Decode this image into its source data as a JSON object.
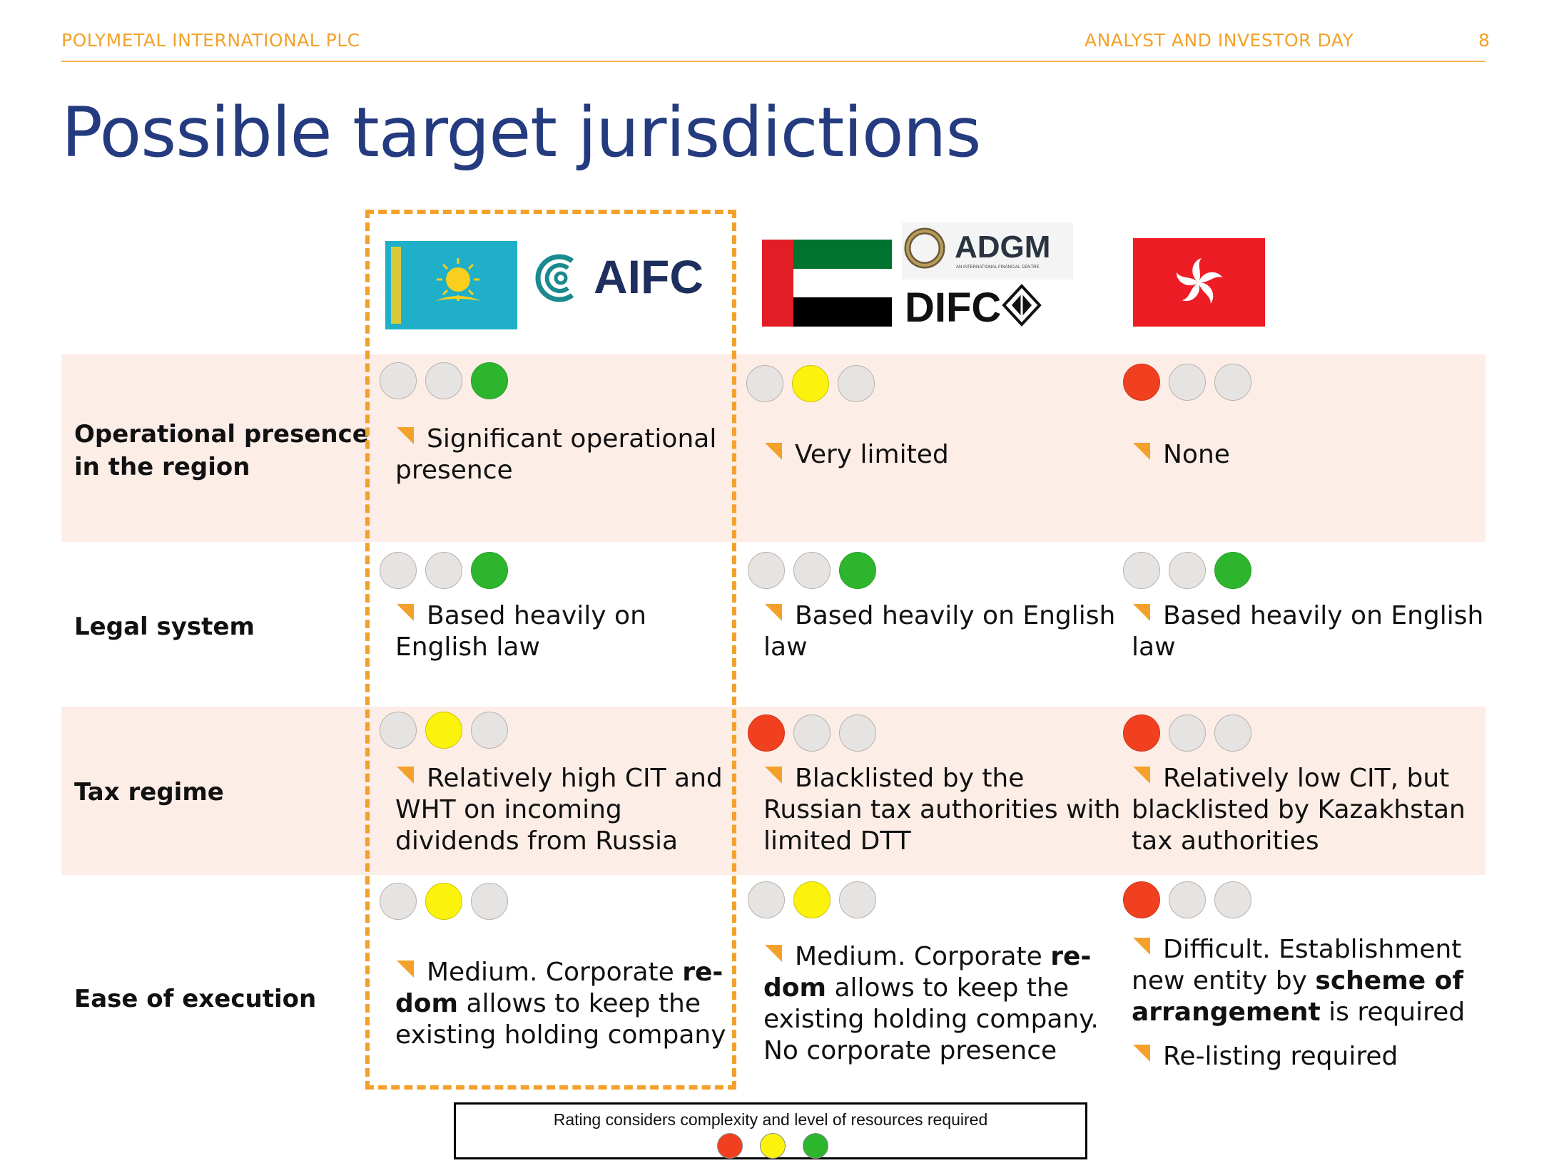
{
  "header": {
    "company": "POLYMETAL INTERNATIONAL PLC",
    "event": "ANALYST AND INVESTOR DAY",
    "page": "8"
  },
  "title": "Possible target jurisdictions",
  "logos": {
    "aifc": "AIFC",
    "adgm": "ADGM",
    "adgm_sub": "AN INTERNATIONAL FINANCIAL CENTRE",
    "difc": "DIFC"
  },
  "rows": [
    {
      "label": [
        "Operational presence",
        "in the region"
      ],
      "cells": [
        {
          "rating": [
            "grey",
            "grey",
            "green"
          ],
          "text": [
            "Significant operational",
            "presence"
          ]
        },
        {
          "rating": [
            "grey",
            "yellow",
            "grey"
          ],
          "text": [
            "Very limited"
          ]
        },
        {
          "rating": [
            "red",
            "grey",
            "grey"
          ],
          "text": [
            "None"
          ]
        }
      ]
    },
    {
      "label": [
        "Legal system"
      ],
      "cells": [
        {
          "rating": [
            "grey",
            "grey",
            "green"
          ],
          "text": [
            "Based heavily on",
            "English law"
          ]
        },
        {
          "rating": [
            "grey",
            "grey",
            "green"
          ],
          "text": [
            "Based heavily on English",
            "law"
          ]
        },
        {
          "rating": [
            "grey",
            "grey",
            "green"
          ],
          "text": [
            "Based heavily on English",
            "law"
          ]
        }
      ]
    },
    {
      "label": [
        "Tax regime"
      ],
      "cells": [
        {
          "rating": [
            "grey",
            "yellow",
            "grey"
          ],
          "text": [
            "Relatively high CIT and",
            "WHT on incoming",
            "dividends from Russia"
          ]
        },
        {
          "rating": [
            "red",
            "grey",
            "grey"
          ],
          "text": [
            "Blacklisted by the",
            "Russian tax authorities with",
            "limited DTT"
          ]
        },
        {
          "rating": [
            "red",
            "grey",
            "grey"
          ],
          "text": [
            "Relatively low CIT, but",
            "blacklisted by Kazakhstan",
            "tax authorities"
          ]
        }
      ]
    },
    {
      "label": [
        "Ease of execution"
      ],
      "cells": [
        {
          "rating": [
            "grey",
            "yellow",
            "grey"
          ],
          "line1": "Medium. Corporate ",
          "bold1": "re-",
          "bold2": "dom",
          "line2rest": " allows to keep the",
          "line3": "existing holding company"
        },
        {
          "rating": [
            "grey",
            "yellow",
            "grey"
          ],
          "line1": "Medium. Corporate ",
          "bold1": "re-",
          "bold2": "dom",
          "line2rest": " allows to keep the",
          "line3": "existing holding company.",
          "line4": "No corporate presence"
        },
        {
          "rating": [
            "red",
            "grey",
            "grey"
          ],
          "line1": "Difficult. Establishment",
          "line2a": "new entity by ",
          "bold1": "scheme of",
          "bold2": "arrangement",
          "line3rest": " is required",
          "bullet2": "Re-listing required"
        }
      ]
    }
  ],
  "legend": {
    "text": "Rating considers complexity and level of resources required",
    "colors": [
      "#f0401f",
      "#fbf30c",
      "#2db52e"
    ]
  },
  "colors": {
    "accent": "#f3a12b",
    "title": "#253b80",
    "band": "#fcede6",
    "green": "#2db52e",
    "yellow": "#fbf30c",
    "red": "#f0401f"
  }
}
